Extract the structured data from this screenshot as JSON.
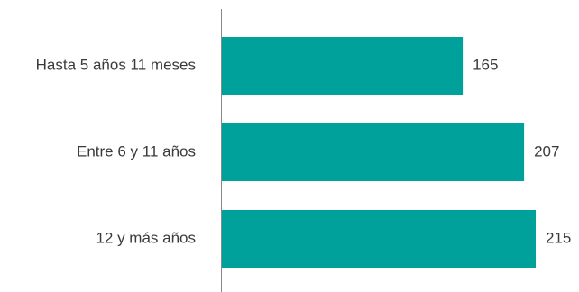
{
  "chart_data": {
    "type": "bar",
    "orientation": "horizontal",
    "title": "",
    "xlabel": "",
    "ylabel": "",
    "categories": [
      "Hasta 5 años 11 meses",
      "Entre 6 y 11 años",
      "12 y más años"
    ],
    "values": [
      165,
      207,
      215
    ],
    "value_labels": [
      "165",
      "207",
      "215"
    ],
    "xlim": [
      0,
      223
    ],
    "grid": false,
    "legend": "none",
    "colors": {
      "bar": "#00A19A",
      "axis": "#888888",
      "text": "#3a3a3a"
    }
  }
}
